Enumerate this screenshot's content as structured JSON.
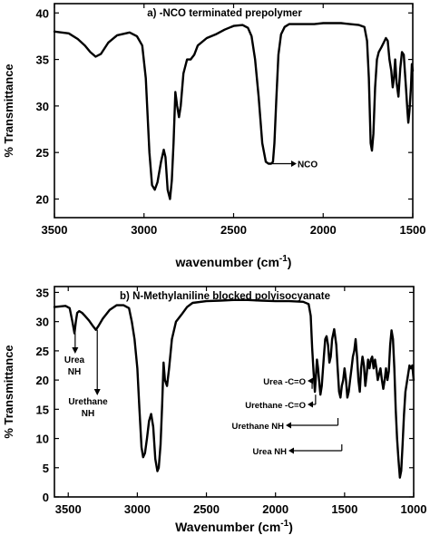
{
  "chart_data": [
    {
      "type": "line",
      "title": "a) -NCO terminated prepolymer",
      "xlabel": "wavenumber (cm",
      "xlabel_sup": "-1",
      "xlabel_tail": ")",
      "ylabel": "% Transmittance",
      "xlim": [
        3500,
        1500
      ],
      "ylim": [
        18,
        41
      ],
      "x_reversed": true,
      "grid": false,
      "x_ticks": [
        3500,
        3000,
        2500,
        2000,
        1500
      ],
      "y_ticks": [
        20,
        25,
        30,
        35,
        40
      ],
      "series": [
        {
          "x": [
            3500,
            3420,
            3370,
            3330,
            3300,
            3270,
            3240,
            3200,
            3150,
            3080,
            3040,
            3010,
            2990,
            2970,
            2955,
            2940,
            2925,
            2905,
            2890,
            2880,
            2868,
            2855,
            2845,
            2835,
            2825,
            2815,
            2805,
            2795,
            2780,
            2760,
            2740,
            2720,
            2700,
            2650,
            2600,
            2550,
            2500,
            2450,
            2420,
            2400,
            2380,
            2360,
            2340,
            2320,
            2305,
            2290,
            2280,
            2272,
            2262,
            2250,
            2235,
            2215,
            2190,
            2150,
            2100,
            2050,
            2000,
            1950,
            1900,
            1850,
            1800,
            1770,
            1755,
            1745,
            1735,
            1728,
            1720,
            1710,
            1700,
            1690,
            1675,
            1660,
            1650,
            1640,
            1630,
            1620,
            1612,
            1605,
            1598,
            1590,
            1580,
            1570,
            1560,
            1550,
            1545,
            1538,
            1530,
            1525,
            1518,
            1510,
            1505,
            1500
          ],
          "y": [
            38.0,
            37.8,
            37.2,
            36.5,
            35.8,
            35.3,
            35.6,
            36.8,
            37.6,
            37.9,
            37.5,
            36.5,
            33.0,
            25.0,
            21.5,
            21.0,
            21.8,
            24.0,
            25.3,
            24.5,
            21.0,
            20.0,
            22.0,
            26.0,
            31.5,
            30.0,
            28.8,
            30.0,
            33.5,
            35.0,
            35.0,
            35.5,
            36.5,
            37.3,
            37.7,
            38.2,
            38.6,
            38.7,
            38.4,
            37.5,
            35.0,
            31.0,
            26.0,
            24.0,
            23.8,
            23.8,
            24.0,
            26.0,
            30.5,
            35.5,
            37.7,
            38.5,
            38.8,
            38.8,
            38.8,
            38.8,
            38.9,
            38.9,
            38.9,
            38.8,
            38.7,
            38.5,
            37.0,
            33.0,
            26.0,
            25.2,
            27.0,
            32.0,
            35.0,
            35.8,
            36.3,
            36.9,
            37.3,
            37.0,
            35.0,
            33.8,
            32.0,
            33.0,
            35.0,
            32.5,
            31.0,
            34.0,
            35.8,
            35.5,
            34.0,
            32.0,
            29.5,
            28.2,
            29.5,
            32.0,
            34.5,
            33.8
          ]
        }
      ],
      "annotations": [
        {
          "text": "NCO",
          "x": 2285,
          "y": 23.8
        }
      ]
    },
    {
      "type": "line",
      "title": "b) N-Methylaniline blocked polyisocyanate",
      "xlabel": "Wavenumber (cm",
      "xlabel_sup": "-1",
      "xlabel_tail": ")",
      "ylabel": "% Transmittance",
      "xlim": [
        3600,
        1000
      ],
      "ylim": [
        0,
        36
      ],
      "x_reversed": true,
      "grid": false,
      "x_ticks": [
        3500,
        3000,
        2500,
        2000,
        1500,
        1000
      ],
      "y_ticks": [
        0,
        5,
        10,
        15,
        20,
        25,
        30,
        35
      ],
      "series": [
        {
          "x": [
            3600,
            3560,
            3520,
            3490,
            3470,
            3455,
            3445,
            3435,
            3420,
            3400,
            3380,
            3350,
            3320,
            3300,
            3280,
            3250,
            3200,
            3150,
            3100,
            3060,
            3040,
            3020,
            3000,
            2985,
            2970,
            2958,
            2945,
            2930,
            2915,
            2900,
            2885,
            2870,
            2855,
            2845,
            2832,
            2820,
            2810,
            2800,
            2785,
            2770,
            2750,
            2720,
            2680,
            2640,
            2600,
            2500,
            2400,
            2300,
            2200,
            2100,
            2000,
            1900,
            1800,
            1760,
            1745,
            1735,
            1725,
            1715,
            1705,
            1700,
            1692,
            1685,
            1675,
            1665,
            1650,
            1640,
            1630,
            1620,
            1610,
            1600,
            1590,
            1575,
            1560,
            1550,
            1540,
            1530,
            1520,
            1510,
            1500,
            1490,
            1480,
            1470,
            1460,
            1450,
            1440,
            1430,
            1420,
            1410,
            1400,
            1390,
            1380,
            1370,
            1360,
            1350,
            1340,
            1330,
            1320,
            1310,
            1300,
            1290,
            1280,
            1270,
            1260,
            1250,
            1240,
            1230,
            1220,
            1210,
            1200,
            1190,
            1180,
            1170,
            1160,
            1150,
            1140,
            1130,
            1120,
            1110,
            1100,
            1090,
            1080,
            1070,
            1060,
            1050,
            1040,
            1030,
            1020,
            1010,
            1000
          ],
          "y": [
            32.5,
            32.6,
            32.7,
            32.3,
            30.0,
            28.0,
            30.0,
            31.5,
            31.8,
            31.5,
            31.0,
            30.2,
            29.2,
            28.6,
            29.3,
            30.5,
            32.0,
            32.8,
            32.8,
            32.3,
            30.0,
            27.0,
            22.0,
            15.0,
            8.5,
            6.8,
            7.5,
            10.0,
            13.0,
            14.2,
            12.0,
            6.5,
            4.4,
            5.0,
            9.0,
            16.0,
            23.0,
            20.0,
            19.0,
            22.0,
            27.0,
            30.0,
            31.2,
            32.5,
            33.2,
            33.5,
            33.6,
            33.7,
            33.7,
            33.6,
            33.5,
            33.5,
            33.4,
            33.0,
            31.0,
            25.5,
            21.5,
            18.0,
            21.5,
            23.5,
            22.0,
            20.0,
            17.5,
            19.0,
            24.0,
            27.0,
            27.5,
            26.0,
            23.0,
            24.0,
            27.0,
            28.7,
            26.0,
            22.0,
            18.0,
            17.0,
            19.0,
            20.0,
            22.0,
            20.0,
            17.0,
            18.0,
            20.0,
            22.0,
            24.0,
            25.0,
            27.0,
            24.0,
            20.0,
            18.0,
            22.0,
            24.0,
            22.5,
            19.0,
            21.0,
            23.5,
            22.0,
            23.5,
            24.0,
            22.0,
            23.5,
            22.0,
            20.0,
            21.0,
            22.0,
            20.0,
            18.5,
            20.0,
            22.0,
            20.0,
            21.5,
            26.0,
            28.5,
            27.0,
            22.0,
            15.0,
            10.0,
            6.5,
            3.3,
            4.5,
            9.0,
            14.0,
            18.0,
            19.5,
            21.0,
            22.5,
            22.0,
            22.5,
            20.0
          ]
        }
      ],
      "annotations": [
        {
          "text": "Urea\nNH",
          "x": 3450,
          "y": 28.0
        },
        {
          "text": "Urethane\nNH",
          "x": 3290,
          "y": 28.6
        },
        {
          "text": "Urea -C=O",
          "x": 1735,
          "y": 18.5
        },
        {
          "text": "Urethane -C=O",
          "x": 1710,
          "y": 17.5
        },
        {
          "text": "Urethane NH",
          "x": 1548,
          "y": 13.5
        },
        {
          "text": "Urea NH",
          "x": 1520,
          "y": 9.0
        }
      ]
    }
  ]
}
